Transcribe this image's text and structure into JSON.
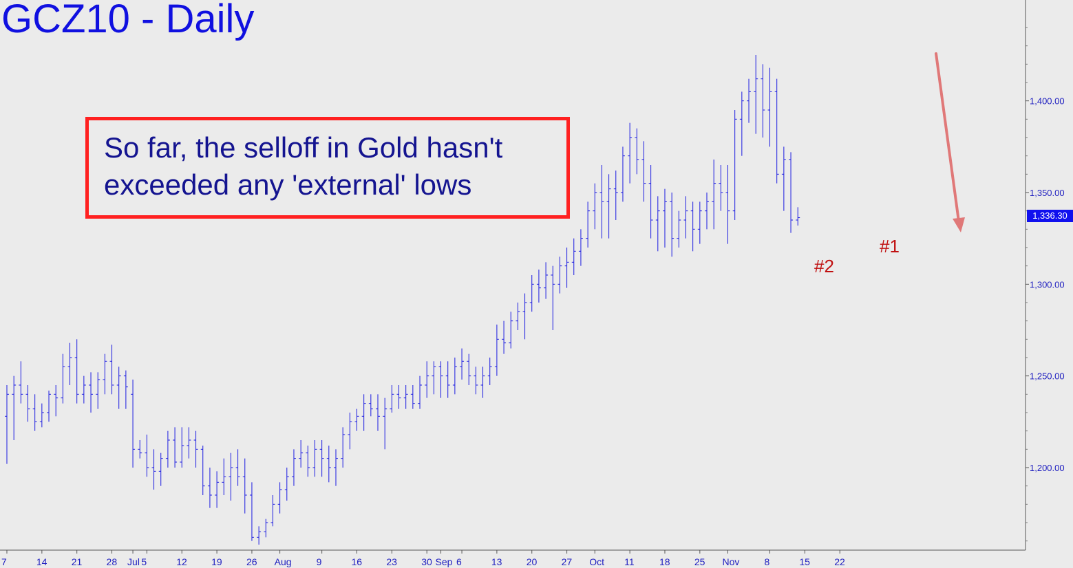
{
  "chart_data": {
    "type": "ohlc",
    "title": "GCZ10 - Daily",
    "ylim": [
      1155,
      1455
    ],
    "y_ticks": [
      {
        "value": 1200,
        "label": "1,200.00"
      },
      {
        "value": 1250,
        "label": "1,250.00"
      },
      {
        "value": 1300,
        "label": "1,300.00"
      },
      {
        "value": 1350,
        "label": "1,350.00"
      },
      {
        "value": 1400,
        "label": "1,400.00"
      }
    ],
    "last_price": {
      "value": 1336.3,
      "label": "1,336.30"
    },
    "x_ticks": [
      {
        "bar": 0,
        "label": "7"
      },
      {
        "bar": 5,
        "label": "14"
      },
      {
        "bar": 10,
        "label": "21"
      },
      {
        "bar": 15,
        "label": "28"
      },
      {
        "bar": 18,
        "label": "Jul"
      },
      {
        "bar": 20,
        "label": "5"
      },
      {
        "bar": 25,
        "label": "12"
      },
      {
        "bar": 30,
        "label": "19"
      },
      {
        "bar": 35,
        "label": "26"
      },
      {
        "bar": 39,
        "label": "Aug"
      },
      {
        "bar": 45,
        "label": "9"
      },
      {
        "bar": 50,
        "label": "16"
      },
      {
        "bar": 55,
        "label": "23"
      },
      {
        "bar": 60,
        "label": "30"
      },
      {
        "bar": 62,
        "label": "Sep"
      },
      {
        "bar": 65,
        "label": "6"
      },
      {
        "bar": 70,
        "label": "13"
      },
      {
        "bar": 75,
        "label": "20"
      },
      {
        "bar": 80,
        "label": "27"
      },
      {
        "bar": 84,
        "label": "Oct"
      },
      {
        "bar": 89,
        "label": "11"
      },
      {
        "bar": 94,
        "label": "18"
      },
      {
        "bar": 99,
        "label": "25"
      },
      {
        "bar": 103,
        "label": "Nov"
      },
      {
        "bar": 109,
        "label": "8"
      },
      {
        "bar": 114,
        "label": "15"
      },
      {
        "bar": 119,
        "label": "22"
      }
    ],
    "bars": [
      [
        1228,
        1245,
        1202,
        1240
      ],
      [
        1240,
        1250,
        1215,
        1245
      ],
      [
        1245,
        1258,
        1235,
        1240
      ],
      [
        1240,
        1245,
        1225,
        1232
      ],
      [
        1232,
        1240,
        1220,
        1225
      ],
      [
        1225,
        1235,
        1222,
        1230
      ],
      [
        1230,
        1242,
        1225,
        1240
      ],
      [
        1240,
        1245,
        1228,
        1238
      ],
      [
        1238,
        1262,
        1235,
        1255
      ],
      [
        1255,
        1268,
        1245,
        1260
      ],
      [
        1260,
        1270,
        1235,
        1240
      ],
      [
        1240,
        1250,
        1235,
        1245
      ],
      [
        1245,
        1252,
        1230,
        1240
      ],
      [
        1240,
        1252,
        1232,
        1248
      ],
      [
        1248,
        1262,
        1240,
        1258
      ],
      [
        1258,
        1267,
        1240,
        1245
      ],
      [
        1245,
        1255,
        1232,
        1250
      ],
      [
        1250,
        1253,
        1232,
        1244
      ],
      [
        1240,
        1248,
        1200,
        1210
      ],
      [
        1210,
        1215,
        1205,
        1208
      ],
      [
        1208,
        1218,
        1195,
        1200
      ],
      [
        1200,
        1210,
        1188,
        1198
      ],
      [
        1198,
        1208,
        1190,
        1205
      ],
      [
        1205,
        1220,
        1200,
        1215
      ],
      [
        1215,
        1222,
        1200,
        1203
      ],
      [
        1203,
        1222,
        1200,
        1212
      ],
      [
        1212,
        1222,
        1205,
        1215
      ],
      [
        1215,
        1220,
        1200,
        1210
      ],
      [
        1210,
        1212,
        1185,
        1190
      ],
      [
        1190,
        1200,
        1178,
        1185
      ],
      [
        1185,
        1198,
        1178,
        1192
      ],
      [
        1192,
        1205,
        1185,
        1195
      ],
      [
        1195,
        1208,
        1182,
        1200
      ],
      [
        1200,
        1210,
        1190,
        1195
      ],
      [
        1195,
        1205,
        1175,
        1185
      ],
      [
        1185,
        1192,
        1160,
        1162
      ],
      [
        1162,
        1168,
        1158,
        1165
      ],
      [
        1165,
        1172,
        1162,
        1170
      ],
      [
        1170,
        1185,
        1168,
        1180
      ],
      [
        1180,
        1192,
        1175,
        1188
      ],
      [
        1188,
        1200,
        1182,
        1195
      ],
      [
        1195,
        1210,
        1190,
        1205
      ],
      [
        1205,
        1215,
        1200,
        1208
      ],
      [
        1208,
        1212,
        1195,
        1200
      ],
      [
        1200,
        1215,
        1195,
        1210
      ],
      [
        1210,
        1215,
        1195,
        1205
      ],
      [
        1205,
        1212,
        1192,
        1200
      ],
      [
        1200,
        1210,
        1190,
        1205
      ],
      [
        1205,
        1222,
        1200,
        1218
      ],
      [
        1218,
        1230,
        1210,
        1225
      ],
      [
        1225,
        1232,
        1220,
        1228
      ],
      [
        1228,
        1240,
        1220,
        1235
      ],
      [
        1235,
        1240,
        1228,
        1232
      ],
      [
        1232,
        1240,
        1220,
        1228
      ],
      [
        1228,
        1238,
        1210,
        1232
      ],
      [
        1232,
        1245,
        1230,
        1240
      ],
      [
        1240,
        1245,
        1232,
        1238
      ],
      [
        1238,
        1245,
        1232,
        1240
      ],
      [
        1240,
        1245,
        1232,
        1235
      ],
      [
        1235,
        1250,
        1232,
        1245
      ],
      [
        1245,
        1258,
        1238,
        1250
      ],
      [
        1250,
        1258,
        1240,
        1255
      ],
      [
        1255,
        1258,
        1238,
        1250
      ],
      [
        1250,
        1258,
        1238,
        1245
      ],
      [
        1245,
        1260,
        1240,
        1255
      ],
      [
        1255,
        1265,
        1248,
        1258
      ],
      [
        1258,
        1262,
        1245,
        1250
      ],
      [
        1250,
        1255,
        1240,
        1245
      ],
      [
        1245,
        1255,
        1238,
        1250
      ],
      [
        1250,
        1260,
        1245,
        1255
      ],
      [
        1255,
        1278,
        1250,
        1270
      ],
      [
        1270,
        1280,
        1262,
        1268
      ],
      [
        1268,
        1285,
        1265,
        1280
      ],
      [
        1280,
        1290,
        1275,
        1285
      ],
      [
        1285,
        1295,
        1270,
        1290
      ],
      [
        1290,
        1305,
        1285,
        1300
      ],
      [
        1300,
        1308,
        1290,
        1298
      ],
      [
        1298,
        1312,
        1292,
        1305
      ],
      [
        1305,
        1310,
        1275,
        1300
      ],
      [
        1300,
        1315,
        1295,
        1310
      ],
      [
        1310,
        1320,
        1298,
        1312
      ],
      [
        1312,
        1325,
        1305,
        1318
      ],
      [
        1318,
        1330,
        1310,
        1325
      ],
      [
        1325,
        1345,
        1320,
        1340
      ],
      [
        1340,
        1355,
        1330,
        1350
      ],
      [
        1350,
        1365,
        1325,
        1345
      ],
      [
        1345,
        1360,
        1325,
        1352
      ],
      [
        1352,
        1362,
        1335,
        1350
      ],
      [
        1350,
        1375,
        1345,
        1370
      ],
      [
        1370,
        1388,
        1355,
        1380
      ],
      [
        1380,
        1385,
        1360,
        1368
      ],
      [
        1368,
        1378,
        1345,
        1355
      ],
      [
        1355,
        1365,
        1325,
        1335
      ],
      [
        1335,
        1348,
        1318,
        1340
      ],
      [
        1340,
        1352,
        1320,
        1345
      ],
      [
        1345,
        1350,
        1315,
        1325
      ],
      [
        1325,
        1340,
        1320,
        1335
      ],
      [
        1335,
        1348,
        1325,
        1340
      ],
      [
        1340,
        1345,
        1318,
        1330
      ],
      [
        1330,
        1345,
        1322,
        1340
      ],
      [
        1340,
        1350,
        1330,
        1345
      ],
      [
        1345,
        1368,
        1330,
        1355
      ],
      [
        1355,
        1365,
        1340,
        1350
      ],
      [
        1350,
        1365,
        1322,
        1340
      ],
      [
        1340,
        1395,
        1335,
        1390
      ],
      [
        1390,
        1405,
        1370,
        1400
      ],
      [
        1400,
        1412,
        1388,
        1405
      ],
      [
        1405,
        1425,
        1382,
        1412
      ],
      [
        1412,
        1420,
        1380,
        1395
      ],
      [
        1395,
        1418,
        1375,
        1405
      ],
      [
        1405,
        1412,
        1355,
        1360
      ],
      [
        1360,
        1375,
        1340,
        1368
      ],
      [
        1368,
        1372,
        1328,
        1335
      ],
      [
        1335,
        1342,
        1332,
        1336.3
      ]
    ],
    "annotations": [
      "#2",
      "#1"
    ],
    "note": [
      "So far, the selloff in Gold hasn't",
      "exceeded any 'external' lows"
    ]
  },
  "colors": {
    "bars": "#1a1ae0",
    "axis_text": "#2020c0",
    "note_border": "#ff2020",
    "note_text": "#141490",
    "annotation": "#c01010",
    "arrow": "#e07878"
  }
}
